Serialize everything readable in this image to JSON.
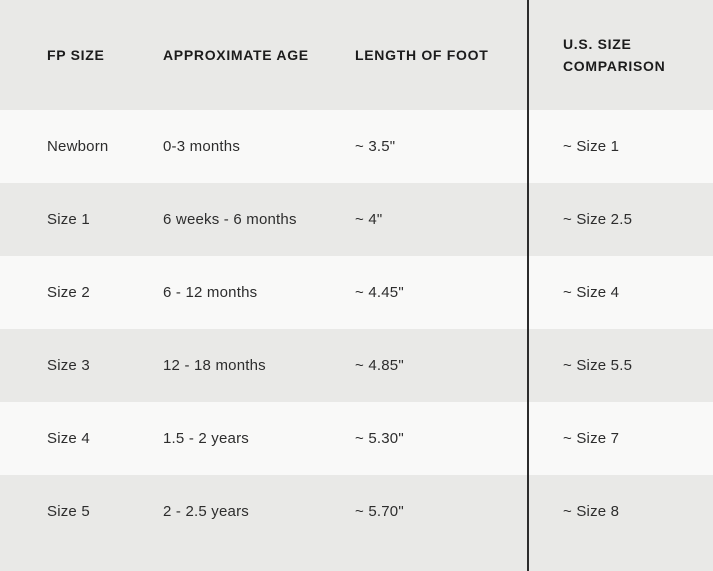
{
  "colors": {
    "row_light": "#f9f9f8",
    "row_shaded": "#e9e9e7",
    "divider_line": "#2c2c2c",
    "header_text": "#1c1c1c",
    "body_text": "#2d2d2d"
  },
  "header": {
    "fp_size": "FP SIZE",
    "age": "APPROXIMATE AGE",
    "length": "LENGTH OF FOOT",
    "us_line1": "U.S. SIZE",
    "us_line2": "COMPARISON"
  },
  "rows": [
    {
      "fp_size": "Newborn",
      "age": "0-3 months",
      "length": "~ 3.5\"",
      "us_size": "~ Size 1"
    },
    {
      "fp_size": "Size 1",
      "age": "6 weeks - 6 months",
      "length": "~ 4\"",
      "us_size": "~ Size 2.5"
    },
    {
      "fp_size": "Size 2",
      "age": "6 - 12 months",
      "length": "~ 4.45\"",
      "us_size": "~ Size 4"
    },
    {
      "fp_size": "Size 3",
      "age": "12 - 18 months",
      "length": "~ 4.85\"",
      "us_size": "~ Size 5.5"
    },
    {
      "fp_size": "Size 4",
      "age": "1.5 - 2 years",
      "length": "~ 5.30\"",
      "us_size": "~ Size 7"
    },
    {
      "fp_size": "Size 5",
      "age": "2 - 2.5 years",
      "length": "~ 5.70\"",
      "us_size": "~ Size 8"
    }
  ],
  "chart_data": {
    "type": "table",
    "title": "FP baby shoe size chart",
    "columns": [
      "FP SIZE",
      "APPROXIMATE AGE",
      "LENGTH OF FOOT",
      "U.S. SIZE COMPARISON"
    ],
    "rows": [
      [
        "Newborn",
        "0-3 months",
        "~ 3.5\"",
        "~ Size 1"
      ],
      [
        "Size 1",
        "6 weeks - 6 months",
        "~ 4\"",
        "~ Size 2.5"
      ],
      [
        "Size 2",
        "6 - 12 months",
        "~ 4.45\"",
        "~ Size 4"
      ],
      [
        "Size 3",
        "12 - 18 months",
        "~ 4.85\"",
        "~ Size 5.5"
      ],
      [
        "Size 4",
        "1.5 - 2 years",
        "~ 5.30\"",
        "~ Size 7"
      ],
      [
        "Size 5",
        "2 - 2.5 years",
        "~ 5.70\"",
        "~ Size 8"
      ]
    ]
  }
}
